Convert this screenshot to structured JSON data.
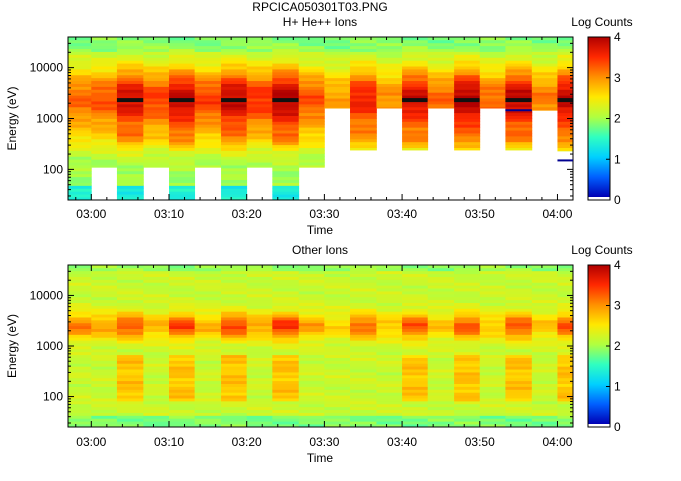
{
  "figure": {
    "title": "RPCICA050301T03.PNG"
  },
  "colors": {
    "scale": [
      "#0000b4",
      "#0060ff",
      "#00d0ff",
      "#30ffc0",
      "#b0ff40",
      "#ffe800",
      "#ff9000",
      "#ff2800",
      "#b00000"
    ],
    "band_dark": "#101010",
    "line_dark_blue": "#000090",
    "empty": "#ffffff"
  },
  "chart_data": [
    {
      "type": "heatmap",
      "title": "H+ He++ Ions",
      "xlabel": "Time",
      "ylabel": "Energy (eV)",
      "y_scale": "log",
      "ylim": [
        25,
        40000
      ],
      "x_range": [
        "02:57",
        "04:02"
      ],
      "x_ticks": [
        "03:00",
        "03:10",
        "03:20",
        "03:30",
        "03:40",
        "03:50",
        "04:00"
      ],
      "y_ticks": [
        "100",
        "1000",
        "10000"
      ],
      "colorbar": {
        "label": "Log Counts",
        "range": [
          0,
          4
        ],
        "ticks": [
          "0",
          "1",
          "2",
          "3",
          "4"
        ]
      },
      "peak_energy_eV": 2500,
      "columns": [
        {
          "start": "02:57.0",
          "end": "03:00.0",
          "emin": 25,
          "peak": 3.2
        },
        {
          "start": "03:00.0",
          "end": "03:03.3",
          "emin": 110,
          "peak": 3.3
        },
        {
          "start": "03:03.3",
          "end": "03:06.7",
          "emin": 25,
          "peak": 3.8
        },
        {
          "start": "03:06.7",
          "end": "03:10.0",
          "emin": 110,
          "peak": 3.4
        },
        {
          "start": "03:10.0",
          "end": "03:13.3",
          "emin": 25,
          "peak": 3.9
        },
        {
          "start": "03:13.3",
          "end": "03:16.7",
          "emin": 110,
          "peak": 3.4
        },
        {
          "start": "03:16.7",
          "end": "03:20.0",
          "emin": 25,
          "peak": 3.9
        },
        {
          "start": "03:20.0",
          "end": "03:23.3",
          "emin": 110,
          "peak": 3.5
        },
        {
          "start": "03:23.3",
          "end": "03:26.7",
          "emin": 25,
          "peak": 4.0
        },
        {
          "start": "03:26.7",
          "end": "03:30.0",
          "emin": 110,
          "peak": 3.3
        },
        {
          "start": "03:30.0",
          "end": "03:33.3",
          "emin": 1600,
          "peak": 2.9
        },
        {
          "start": "03:33.3",
          "end": "03:36.7",
          "emin": 240,
          "peak": 3.6
        },
        {
          "start": "03:36.7",
          "end": "03:40.0",
          "emin": 1600,
          "peak": 3.0
        },
        {
          "start": "03:40.0",
          "end": "03:43.3",
          "emin": 240,
          "peak": 3.8
        },
        {
          "start": "03:43.3",
          "end": "03:46.7",
          "emin": 1600,
          "peak": 3.2
        },
        {
          "start": "03:46.7",
          "end": "03:50.0",
          "emin": 240,
          "peak": 4.0
        },
        {
          "start": "03:50.0",
          "end": "03:53.3",
          "emin": 1600,
          "peak": 3.2
        },
        {
          "start": "03:53.3",
          "end": "03:56.7",
          "emin": 240,
          "peak": 3.9
        },
        {
          "start": "03:56.7",
          "end": "04:00.0",
          "emin": 1450,
          "peak": 3.1
        },
        {
          "start": "04:00.0",
          "end": "04:02.0",
          "emin": 230,
          "peak": 3.9
        }
      ]
    },
    {
      "type": "heatmap",
      "title": "Other Ions",
      "xlabel": "Time",
      "ylabel": "Energy (eV)",
      "y_scale": "log",
      "ylim": [
        25,
        40000
      ],
      "x_range": [
        "02:57",
        "04:02"
      ],
      "x_ticks": [
        "03:00",
        "03:10",
        "03:20",
        "03:30",
        "03:40",
        "03:50",
        "04:00"
      ],
      "y_ticks": [
        "100",
        "1000",
        "10000"
      ],
      "colorbar": {
        "label": "Log Counts",
        "range": [
          0,
          4
        ],
        "ticks": [
          "0",
          "1",
          "2",
          "3",
          "4"
        ]
      },
      "peak_energy_eV": 2500,
      "columns": [
        {
          "start": "02:57.0",
          "end": "03:00.0",
          "emin": 25,
          "peak": 3.1
        },
        {
          "start": "03:00.0",
          "end": "03:03.3",
          "emin": 25,
          "peak": 2.9
        },
        {
          "start": "03:03.3",
          "end": "03:06.7",
          "emin": 25,
          "peak": 3.3
        },
        {
          "start": "03:06.7",
          "end": "03:10.0",
          "emin": 25,
          "peak": 2.8
        },
        {
          "start": "03:10.0",
          "end": "03:13.3",
          "emin": 25,
          "peak": 3.4
        },
        {
          "start": "03:13.3",
          "end": "03:16.7",
          "emin": 25,
          "peak": 2.8
        },
        {
          "start": "03:16.7",
          "end": "03:20.0",
          "emin": 25,
          "peak": 3.4
        },
        {
          "start": "03:20.0",
          "end": "03:23.3",
          "emin": 25,
          "peak": 2.9
        },
        {
          "start": "03:23.3",
          "end": "03:26.7",
          "emin": 25,
          "peak": 3.5
        },
        {
          "start": "03:26.7",
          "end": "03:30.0",
          "emin": 25,
          "peak": 2.9
        },
        {
          "start": "03:30.0",
          "end": "03:33.3",
          "emin": 25,
          "peak": 2.6
        },
        {
          "start": "03:33.3",
          "end": "03:36.7",
          "emin": 25,
          "peak": 3.2
        },
        {
          "start": "03:36.7",
          "end": "03:40.0",
          "emin": 25,
          "peak": 2.7
        },
        {
          "start": "03:40.0",
          "end": "03:43.3",
          "emin": 25,
          "peak": 3.3
        },
        {
          "start": "03:43.3",
          "end": "03:46.7",
          "emin": 25,
          "peak": 2.7
        },
        {
          "start": "03:46.7",
          "end": "03:50.0",
          "emin": 25,
          "peak": 3.3
        },
        {
          "start": "03:50.0",
          "end": "03:53.3",
          "emin": 25,
          "peak": 2.7
        },
        {
          "start": "03:53.3",
          "end": "03:56.7",
          "emin": 25,
          "peak": 3.3
        },
        {
          "start": "03:56.7",
          "end": "04:00.0",
          "emin": 25,
          "peak": 2.7
        },
        {
          "start": "04:00.0",
          "end": "04:02.0",
          "emin": 25,
          "peak": 3.3
        }
      ]
    }
  ]
}
